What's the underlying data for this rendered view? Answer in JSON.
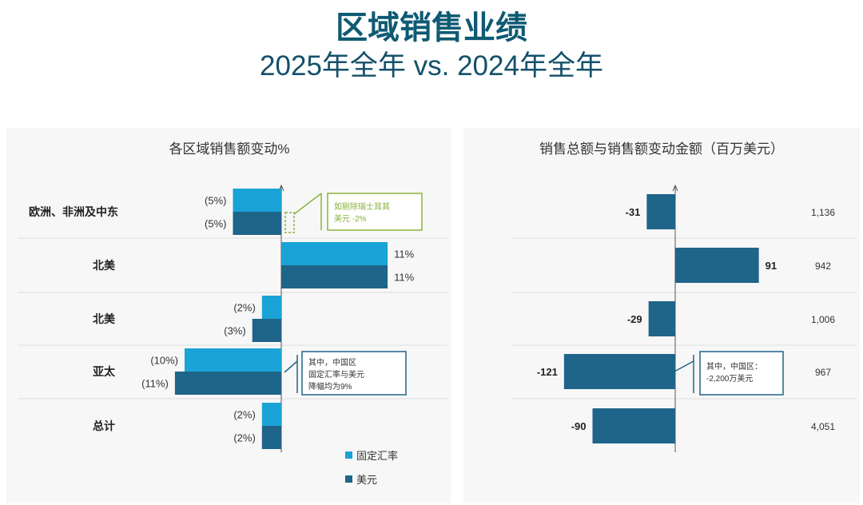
{
  "header": {
    "title": "区域销售业绩",
    "subtitle": "2025年全年 vs. 2024年全年"
  },
  "colors": {
    "fixed_fx": "#1aa3d6",
    "usd": "#1f6489",
    "annotation_green": "#88b33a",
    "annotation_teal": "#1f6489",
    "title": "#0f5a73"
  },
  "chart_data": [
    {
      "type": "bar",
      "orientation": "horizontal",
      "title": "各区域销售额变动%",
      "categories": [
        "欧洲、非洲及中东",
        "北美",
        "北美",
        "亚太",
        "总计"
      ],
      "series": [
        {
          "name": "固定汇率",
          "values": [
            -5,
            11,
            -2,
            -10,
            -2
          ],
          "labels": [
            "(5%)",
            "11%",
            "(2%)",
            "(10%)",
            "(2%)"
          ]
        },
        {
          "name": "美元",
          "values": [
            -5,
            11,
            -3,
            -11,
            -2
          ],
          "labels": [
            "(5%)",
            "11%",
            "(3%)",
            "(11%)",
            "(2%)"
          ]
        }
      ],
      "legend": [
        "固定汇率",
        "美元"
      ],
      "legend_position": "bottom-right",
      "annotations": [
        {
          "category": "欧洲、非洲及中东",
          "lines": [
            "如剔除瑞士耳其",
            "美元 -2%"
          ],
          "style": "green"
        },
        {
          "category": "亚太",
          "lines": [
            "其中，中国区",
            "固定汇率与美元",
            "降幅均为9%"
          ],
          "style": "teal"
        }
      ]
    },
    {
      "type": "bar",
      "orientation": "horizontal",
      "title": "销售总额与销售额变动金额（百万美元）",
      "categories": [
        "欧洲、非洲及中东",
        "北美",
        "北美",
        "亚太",
        "总计"
      ],
      "series": [
        {
          "name": "变动金额",
          "values": [
            -31,
            91,
            -29,
            -121,
            -90
          ],
          "labels": [
            "-31",
            "91",
            "-29",
            "-121",
            "-90"
          ]
        }
      ],
      "totals": [
        "1,136",
        "942",
        "1,006",
        "967",
        "4,051"
      ],
      "annotations": [
        {
          "category": "亚太",
          "lines": [
            "其中，中国区：",
            "-2,200万美元"
          ],
          "style": "teal"
        }
      ]
    }
  ]
}
